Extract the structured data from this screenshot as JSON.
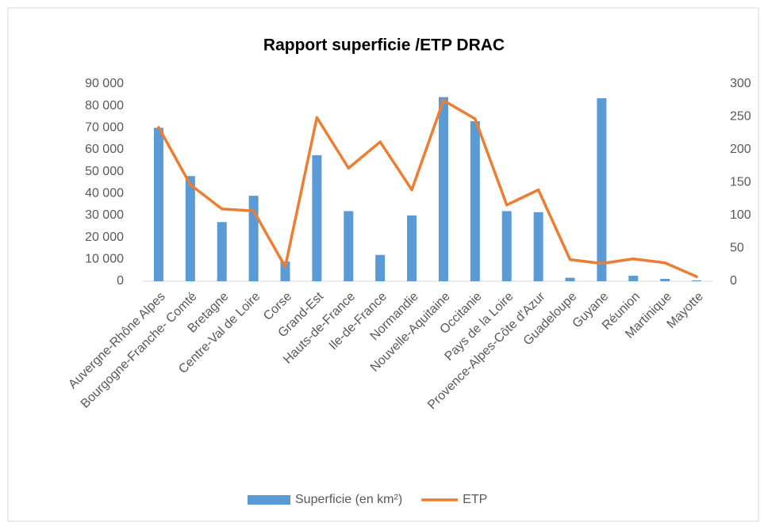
{
  "chart_data": {
    "type": "bar_line",
    "title": "Rapport superficie /ETP DRAC",
    "categories": [
      "Auvergne-Rhône Alpes",
      "Bourgogne-Franche- Comté",
      "Bretagne",
      "Centre-Val de Loire",
      "Corse",
      "Grand-Est",
      "Hauts-de-France",
      "Ile-de-France",
      "Normandie",
      "Nouvelle-Aquitaine",
      "Occitanie",
      "Pays de la Loire",
      "Provence-Alpes-Côte d'Azur",
      "Guadeloupe",
      "Guyane",
      "Réunion",
      "Martinique",
      "Mayotte"
    ],
    "series": [
      {
        "name": "Superficie (en km²)",
        "color": "#5b9bd5",
        "kind": "bar",
        "axis": "y",
        "values": [
          70000,
          48000,
          27000,
          39000,
          9000,
          57500,
          32000,
          12000,
          30000,
          84000,
          73000,
          32000,
          31500,
          1600,
          83500,
          2500,
          1100,
          400
        ]
      },
      {
        "name": "ETP",
        "color": "#ed7d31",
        "kind": "line",
        "axis": "y2",
        "values": [
          234,
          147,
          110,
          107,
          22,
          249,
          172,
          212,
          139,
          275,
          247,
          116,
          139,
          33,
          27,
          34,
          28,
          7
        ]
      }
    ],
    "ylim": [
      0,
      90000
    ],
    "yticks": [
      {
        "value": 0,
        "label": "0"
      },
      {
        "value": 10000,
        "label": "10 000"
      },
      {
        "value": 20000,
        "label": "20 000"
      },
      {
        "value": 30000,
        "label": "30 000"
      },
      {
        "value": 40000,
        "label": "40 000"
      },
      {
        "value": 50000,
        "label": "50 000"
      },
      {
        "value": 60000,
        "label": "60 000"
      },
      {
        "value": 70000,
        "label": "70 000"
      },
      {
        "value": 80000,
        "label": "80 000"
      },
      {
        "value": 90000,
        "label": "90 000"
      }
    ],
    "y2lim": [
      0,
      300
    ],
    "y2ticks": [
      0,
      50,
      100,
      150,
      200,
      250,
      300
    ],
    "legend": "bottom"
  }
}
